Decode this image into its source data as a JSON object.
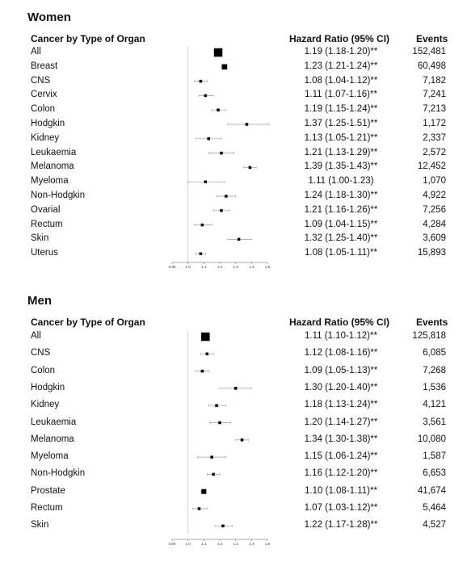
{
  "chart_data": [
    {
      "type": "forest",
      "title": "Women",
      "headers": {
        "group": "Cancer by Type of Organ",
        "hr": "Hazard Ratio (95% CI)",
        "events": "Events"
      },
      "xlim": [
        0.9,
        1.5
      ],
      "ticks": [
        "0.90",
        "1.0",
        "1.1",
        "1.2",
        "1.3",
        "1.4",
        "1.5"
      ],
      "reference_line": 1.0,
      "rows": [
        {
          "label": "All",
          "hr": 1.19,
          "lo": 1.18,
          "hi": 1.2,
          "text": "1.19 (1.18-1.20)**",
          "events": "152,481"
        },
        {
          "label": "Breast",
          "hr": 1.23,
          "lo": 1.21,
          "hi": 1.24,
          "text": "1.23 (1.21-1.24)**",
          "events": "60,498"
        },
        {
          "label": "CNS",
          "hr": 1.08,
          "lo": 1.04,
          "hi": 1.12,
          "text": "1.08 (1.04-1.12)**",
          "events": "7,182"
        },
        {
          "label": "Cervix",
          "hr": 1.11,
          "lo": 1.07,
          "hi": 1.16,
          "text": "1.11 (1.07-1.16)**",
          "events": "7,241"
        },
        {
          "label": "Colon",
          "hr": 1.19,
          "lo": 1.15,
          "hi": 1.24,
          "text": "1.19 (1.15-1.24)**",
          "events": "7,213"
        },
        {
          "label": "Hodgkin",
          "hr": 1.37,
          "lo": 1.25,
          "hi": 1.51,
          "text": "1.37 (1.25-1.51)**",
          "events": "1,172"
        },
        {
          "label": "Kidney",
          "hr": 1.13,
          "lo": 1.05,
          "hi": 1.21,
          "text": "1.13 (1.05-1.21)**",
          "events": "2,337"
        },
        {
          "label": "Leukaemia",
          "hr": 1.21,
          "lo": 1.13,
          "hi": 1.29,
          "text": "1.21 (1.13-1.29)**",
          "events": "2,572"
        },
        {
          "label": "Melanoma",
          "hr": 1.39,
          "lo": 1.35,
          "hi": 1.43,
          "text": "1.39 (1.35-1.43)**",
          "events": "12,452"
        },
        {
          "label": "Myeloma",
          "hr": 1.11,
          "lo": 1.0,
          "hi": 1.23,
          "text": "1.11 (1.00-1.23)",
          "events": "1,070"
        },
        {
          "label": "Non-Hodgkin",
          "hr": 1.24,
          "lo": 1.18,
          "hi": 1.3,
          "text": "1.24 (1.18-1.30)**",
          "events": "4,922"
        },
        {
          "label": "Ovarial",
          "hr": 1.21,
          "lo": 1.16,
          "hi": 1.26,
          "text": "1.21 (1.16-1.26)**",
          "events": "7,256"
        },
        {
          "label": "Rectum",
          "hr": 1.09,
          "lo": 1.04,
          "hi": 1.15,
          "text": "1.09 (1.04-1.15)**",
          "events": "4,284"
        },
        {
          "label": "Skin",
          "hr": 1.32,
          "lo": 1.25,
          "hi": 1.4,
          "text": "1.32 (1.25-1.40)**",
          "events": "3,609"
        },
        {
          "label": "Uterus",
          "hr": 1.08,
          "lo": 1.05,
          "hi": 1.11,
          "text": "1.08 (1.05-1.11)**",
          "events": "15,893"
        }
      ]
    },
    {
      "type": "forest",
      "title": "Men",
      "headers": {
        "group": "Cancer by Type of Organ",
        "hr": "Hazard Ratio (95% CI)",
        "events": "Events"
      },
      "xlim": [
        0.9,
        1.5
      ],
      "ticks": [
        "0.90",
        "1.0",
        "1.1",
        "1.2",
        "1.3",
        "1.4",
        "1.5"
      ],
      "reference_line": 1.0,
      "rows": [
        {
          "label": "All",
          "hr": 1.11,
          "lo": 1.1,
          "hi": 1.12,
          "text": "1.11 (1.10-1.12)**",
          "events": "125,818"
        },
        {
          "label": "CNS",
          "hr": 1.12,
          "lo": 1.08,
          "hi": 1.16,
          "text": "1.12 (1.08-1.16)**",
          "events": "6,085"
        },
        {
          "label": "Colon",
          "hr": 1.09,
          "lo": 1.05,
          "hi": 1.13,
          "text": "1.09 (1.05-1.13)**",
          "events": "7,268"
        },
        {
          "label": "Hodgkin",
          "hr": 1.3,
          "lo": 1.2,
          "hi": 1.4,
          "text": "1.30 (1.20-1.40)**",
          "events": "1,536"
        },
        {
          "label": "Kidney",
          "hr": 1.18,
          "lo": 1.13,
          "hi": 1.24,
          "text": "1.18 (1.13-1.24)**",
          "events": "4,121"
        },
        {
          "label": "Leukaemia",
          "hr": 1.2,
          "lo": 1.14,
          "hi": 1.27,
          "text": "1.20 (1.14-1.27)**",
          "events": "3,561"
        },
        {
          "label": "Melanoma",
          "hr": 1.34,
          "lo": 1.3,
          "hi": 1.38,
          "text": "1.34 (1.30-1.38)**",
          "events": "10,080"
        },
        {
          "label": "Myeloma",
          "hr": 1.15,
          "lo": 1.06,
          "hi": 1.24,
          "text": "1.15 (1.06-1.24)**",
          "events": "1,587"
        },
        {
          "label": "Non-Hodgkin",
          "hr": 1.16,
          "lo": 1.12,
          "hi": 1.2,
          "text": "1.16 (1.12-1.20)**",
          "events": "6,653"
        },
        {
          "label": "Prostate",
          "hr": 1.1,
          "lo": 1.08,
          "hi": 1.11,
          "text": "1.10 (1.08-1.11)**",
          "events": "41,674"
        },
        {
          "label": "Rectum",
          "hr": 1.07,
          "lo": 1.03,
          "hi": 1.12,
          "text": "1.07 (1.03-1.12)**",
          "events": "5,464"
        },
        {
          "label": "Skin",
          "hr": 1.22,
          "lo": 1.17,
          "hi": 1.28,
          "text": "1.22 (1.17-1.28)**",
          "events": "4,527"
        }
      ]
    }
  ]
}
